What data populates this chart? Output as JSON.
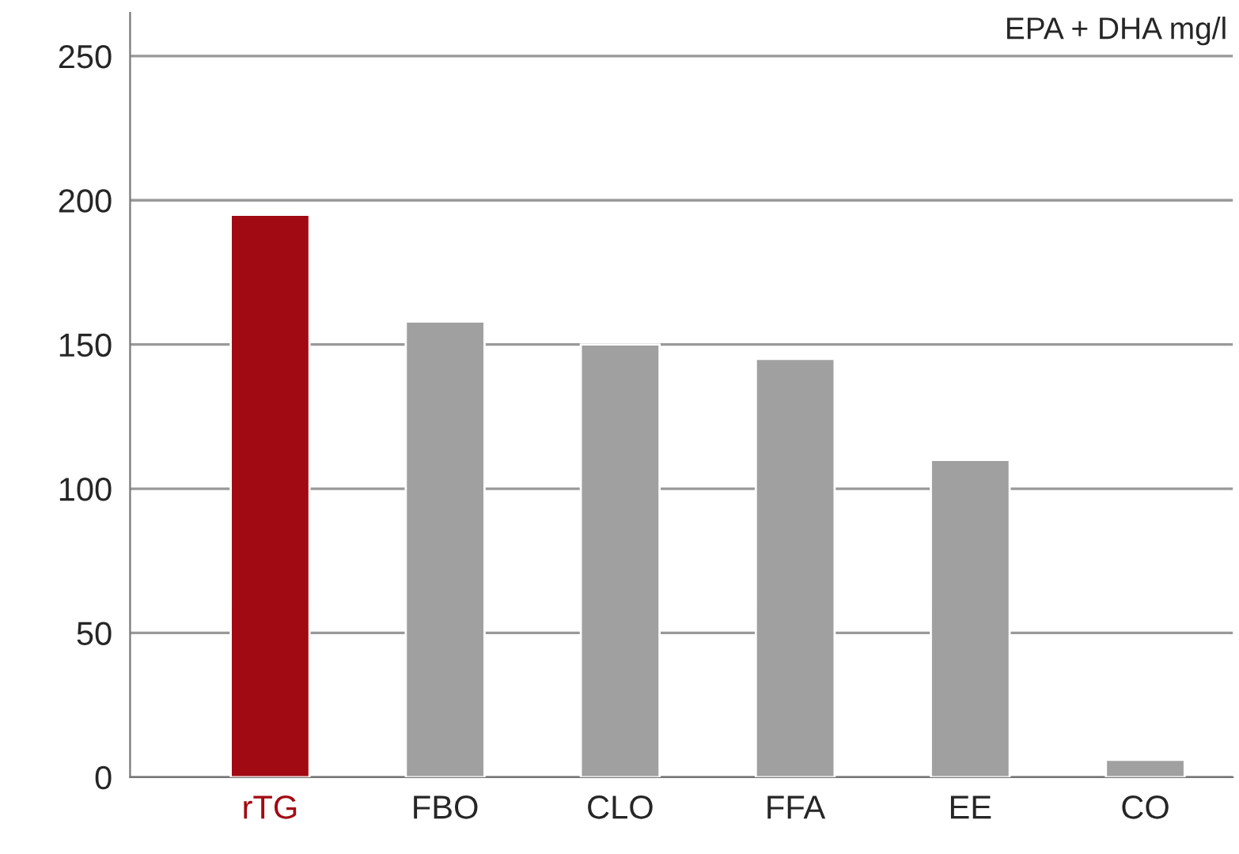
{
  "chart_data": {
    "type": "bar",
    "categories": [
      "rTG",
      "FBO",
      "CLO",
      "FFA",
      "EE",
      "CO"
    ],
    "values": [
      195,
      158,
      150,
      145,
      110,
      6
    ],
    "colors": [
      "#a10a12",
      "#a0a0a0",
      "#a0a0a0",
      "#a0a0a0",
      "#a0a0a0",
      "#a0a0a0"
    ],
    "ylim": [
      0,
      265
    ],
    "yticks": [
      0,
      50,
      100,
      150,
      200,
      250
    ],
    "grid": "y",
    "annotations": [
      "EPA + DHA mg/l"
    ]
  }
}
